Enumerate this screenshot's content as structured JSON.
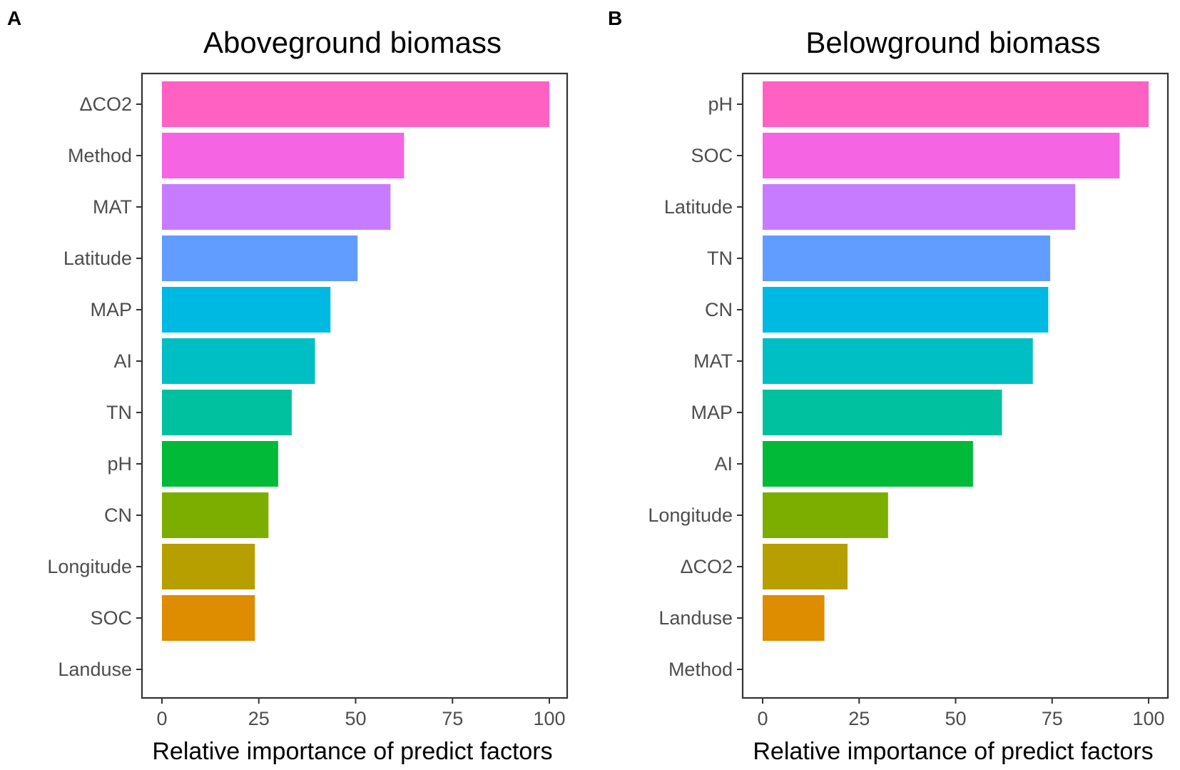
{
  "chart_data": [
    {
      "panel_label": "A",
      "type": "bar",
      "orientation": "horizontal",
      "title": "Aboveground biomass",
      "xlabel": "Relative importance of predict factors",
      "ylabel": "",
      "xlim": [
        0,
        100
      ],
      "xticks": [
        "0",
        "25",
        "50",
        "75",
        "100"
      ],
      "xtick_values": [
        0,
        25,
        50,
        75,
        100
      ],
      "categories": [
        "ΔCO2",
        "Method",
        "MAT",
        "Latitude",
        "MAP",
        "AI",
        "TN",
        "pH",
        "CN",
        "Longitude",
        "SOC",
        "Landuse"
      ],
      "values": [
        100,
        62.5,
        59,
        50.5,
        43.5,
        39.5,
        33.5,
        30,
        27.5,
        24,
        24,
        0
      ],
      "colors": [
        "#FF61C3",
        "#F564E3",
        "#C77CFF",
        "#619CFF",
        "#00B9E3",
        "#00BFC4",
        "#00C19F",
        "#00BA38",
        "#7CAE00",
        "#B79F00",
        "#DE8C00",
        "#F8766D"
      ],
      "grid": false,
      "legend": "none"
    },
    {
      "panel_label": "B",
      "type": "bar",
      "orientation": "horizontal",
      "title": "Belowground biomass",
      "xlabel": "Relative importance of predict factors",
      "ylabel": "",
      "xlim": [
        0,
        100
      ],
      "xticks": [
        "0",
        "25",
        "50",
        "75",
        "100"
      ],
      "xtick_values": [
        0,
        25,
        50,
        75,
        100
      ],
      "categories": [
        "pH",
        "SOC",
        "Latitude",
        "TN",
        "CN",
        "MAT",
        "MAP",
        "AI",
        "Longitude",
        "ΔCO2",
        "Landuse",
        "Method"
      ],
      "values": [
        100,
        92.5,
        81,
        74.5,
        74,
        70,
        62,
        54.5,
        32.5,
        22,
        16,
        0
      ],
      "colors": [
        "#FF61C3",
        "#F564E3",
        "#C77CFF",
        "#619CFF",
        "#00B9E3",
        "#00BFC4",
        "#00C19F",
        "#00BA38",
        "#7CAE00",
        "#B79F00",
        "#DE8C00",
        "#F8766D"
      ],
      "grid": false,
      "legend": "none"
    }
  ]
}
